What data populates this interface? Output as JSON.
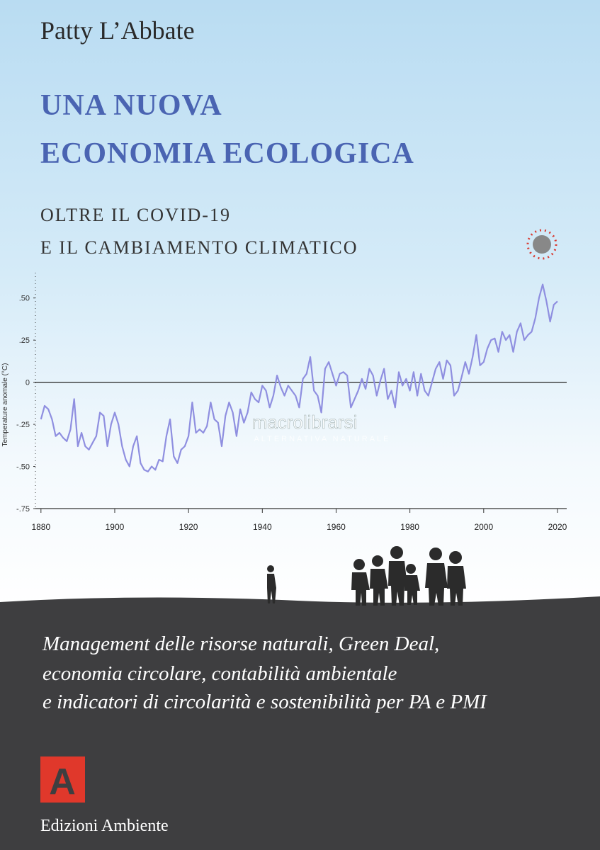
{
  "cover": {
    "author": "Patty L’Abbate",
    "title": [
      "UNA NUOVA",
      "ECONOMIA ECOLOGICA"
    ],
    "subtitle": [
      "OLTRE IL COVID-19",
      "E IL CAMBIAMENTO CLIMATICO"
    ],
    "watermark": [
      "macrolibrarsi",
      "ALTERNATIVA NATURALE"
    ],
    "description": [
      "Management delle risorse naturali, Green Deal,",
      "economia circolare, contabilità ambientale",
      "e indicatori di circolarità e sostenibilità per PA e PMI"
    ],
    "publisher_logo": "A",
    "publisher": "Edizioni Ambiente"
  },
  "chart_data": {
    "type": "line",
    "y_label": "Temperature anomale (°C)",
    "x": [
      1880,
      1881,
      1882,
      1883,
      1884,
      1885,
      1886,
      1887,
      1888,
      1889,
      1890,
      1891,
      1892,
      1893,
      1894,
      1895,
      1896,
      1897,
      1898,
      1899,
      1900,
      1901,
      1902,
      1903,
      1904,
      1905,
      1906,
      1907,
      1908,
      1909,
      1910,
      1911,
      1912,
      1913,
      1914,
      1915,
      1916,
      1917,
      1918,
      1919,
      1920,
      1921,
      1922,
      1923,
      1924,
      1925,
      1926,
      1927,
      1928,
      1929,
      1930,
      1931,
      1932,
      1933,
      1934,
      1935,
      1936,
      1937,
      1938,
      1939,
      1940,
      1941,
      1942,
      1943,
      1944,
      1945,
      1946,
      1947,
      1948,
      1949,
      1950,
      1951,
      1952,
      1953,
      1954,
      1955,
      1956,
      1957,
      1958,
      1959,
      1960,
      1961,
      1962,
      1963,
      1964,
      1965,
      1966,
      1967,
      1968,
      1969,
      1970,
      1971,
      1972,
      1973,
      1974,
      1975,
      1976,
      1977,
      1978,
      1979,
      1980,
      1981,
      1982,
      1983,
      1984,
      1985,
      1986,
      1987,
      1988,
      1989,
      1990,
      1991,
      1992,
      1993,
      1994,
      1995,
      1996,
      1997,
      1998,
      1999,
      2000,
      2001,
      2002,
      2003,
      2004,
      2005,
      2006,
      2007,
      2008,
      2009,
      2010,
      2011,
      2012,
      2013,
      2014,
      2015,
      2016,
      2017,
      2018,
      2019,
      2020
    ],
    "series": [
      {
        "color": "#8f8fe0",
        "values": [
          -0.22,
          -0.14,
          -0.16,
          -0.22,
          -0.32,
          -0.3,
          -0.33,
          -0.35,
          -0.28,
          -0.1,
          -0.38,
          -0.3,
          -0.38,
          -0.4,
          -0.36,
          -0.32,
          -0.18,
          -0.2,
          -0.38,
          -0.25,
          -0.18,
          -0.25,
          -0.38,
          -0.46,
          -0.5,
          -0.38,
          -0.32,
          -0.48,
          -0.52,
          -0.53,
          -0.5,
          -0.52,
          -0.46,
          -0.47,
          -0.32,
          -0.22,
          -0.44,
          -0.48,
          -0.4,
          -0.38,
          -0.32,
          -0.12,
          -0.3,
          -0.28,
          -0.3,
          -0.26,
          -0.12,
          -0.22,
          -0.24,
          -0.38,
          -0.2,
          -0.12,
          -0.18,
          -0.32,
          -0.16,
          -0.24,
          -0.18,
          -0.06,
          -0.1,
          -0.12,
          -0.02,
          -0.05,
          -0.15,
          -0.08,
          0.04,
          -0.03,
          -0.08,
          -0.02,
          -0.05,
          -0.08,
          -0.15,
          0.02,
          0.05,
          0.15,
          -0.05,
          -0.08,
          -0.18,
          0.08,
          0.12,
          0.05,
          -0.02,
          0.05,
          0.06,
          0.04,
          -0.15,
          -0.1,
          -0.05,
          0.02,
          -0.04,
          0.08,
          0.04,
          -0.08,
          0.01,
          0.08,
          -0.1,
          -0.05,
          -0.15,
          0.06,
          -0.02,
          0.02,
          -0.05,
          0.06,
          -0.08,
          0.05,
          -0.05,
          -0.08,
          0.0,
          0.08,
          0.12,
          0.02,
          0.13,
          0.1,
          -0.08,
          -0.05,
          0.03,
          0.12,
          0.05,
          0.15,
          0.28,
          0.1,
          0.12,
          0.2,
          0.25,
          0.26,
          0.18,
          0.3,
          0.25,
          0.28,
          0.18,
          0.3,
          0.35,
          0.25,
          0.28,
          0.3,
          0.38,
          0.5,
          0.58,
          0.48,
          0.36,
          0.46,
          0.48
        ]
      }
    ],
    "xlim": [
      1878.5,
      2022.5
    ],
    "xticks": [
      1880,
      1900,
      1920,
      1940,
      1960,
      1980,
      2000,
      2020
    ],
    "ylim": [
      -0.75,
      0.65
    ],
    "yticks": [
      {
        "value": -0.75,
        "label": "-.75"
      },
      {
        "value": -0.5,
        "label": "-.50"
      },
      {
        "value": -0.25,
        "label": "-.25"
      },
      0,
      {
        "value": 0.25,
        "label": ".25"
      },
      {
        "value": 0.5,
        "label": ".50"
      }
    ],
    "zero_line": true
  }
}
